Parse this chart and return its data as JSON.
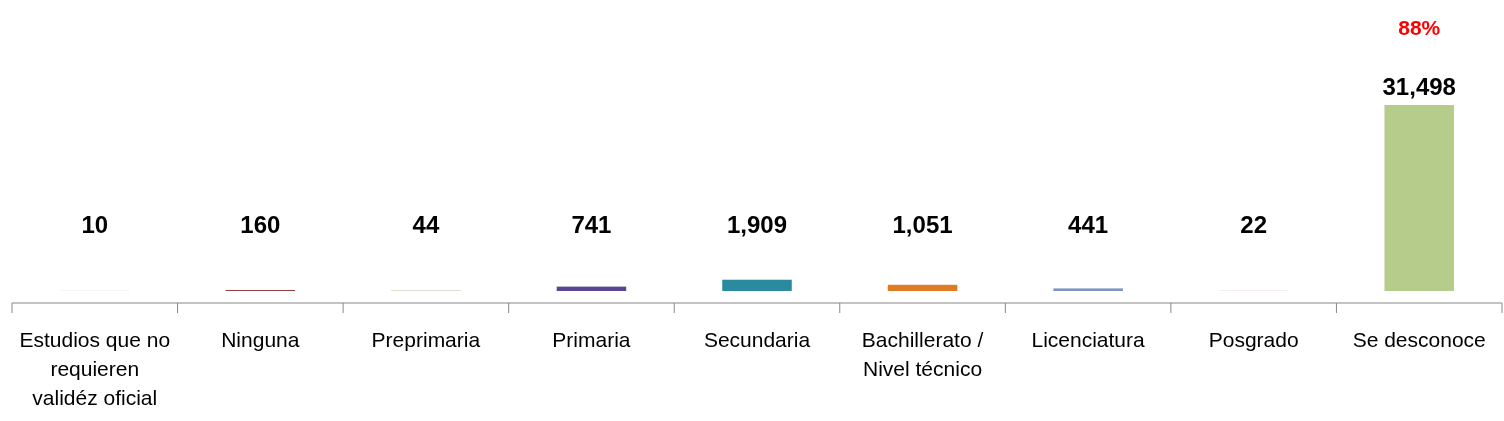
{
  "chart_data": {
    "type": "bar",
    "categories": [
      "Estudios que no requieren validéz oficial",
      "Ninguna",
      "Preprimaria",
      "Primaria",
      "Secundaria",
      "Bachillerato / Nivel técnico",
      "Licenciatura",
      "Posgrado",
      "Se desconoce"
    ],
    "values": [
      10,
      160,
      44,
      741,
      1909,
      1051,
      441,
      22,
      31498
    ],
    "value_labels": [
      "10",
      "160",
      "44",
      "741",
      "1,909",
      "1,051",
      "441",
      "22",
      "31,498"
    ],
    "colors": [
      "#2e5c8e",
      "#8e3333",
      "#6b8a35",
      "#5a4590",
      "#2a8aa0",
      "#e07b25",
      "#7f95c0",
      "#c07878",
      "#b5cc8a"
    ],
    "ylim": [
      0,
      31498
    ],
    "annotations": [
      "88%"
    ]
  }
}
